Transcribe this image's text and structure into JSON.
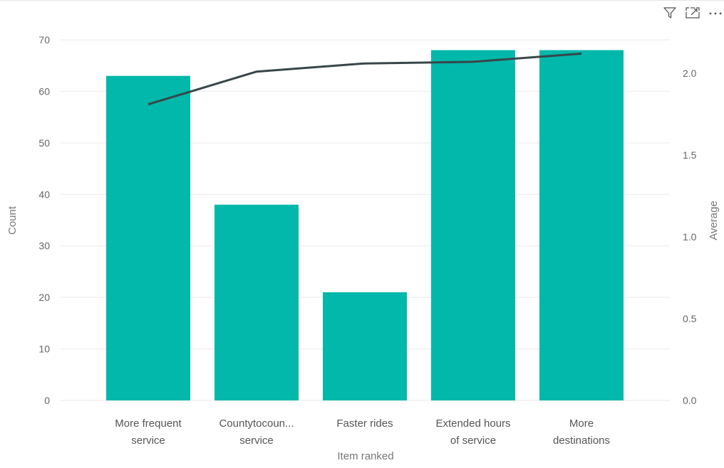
{
  "header": {
    "icons": [
      "filter-icon",
      "focus-mode-icon",
      "more-options-icon"
    ]
  },
  "chart_data": {
    "type": "bar",
    "categories": [
      [
        "More frequent",
        "service"
      ],
      [
        "Countytocoun...",
        "service"
      ],
      [
        "Faster rides"
      ],
      [
        "Extended hours",
        "of service"
      ],
      [
        "More",
        "destinations"
      ]
    ],
    "series": [
      {
        "values": [
          63,
          38,
          21,
          68,
          68
        ],
        "type": "bar",
        "axis": "left",
        "color": "#01b8aa"
      },
      {
        "values": [
          1.81,
          2.01,
          2.06,
          2.07,
          2.12
        ],
        "type": "line",
        "axis": "right",
        "color": "#374649"
      }
    ],
    "xlabel": "Item ranked",
    "ylabel": "Count",
    "y2label": "Average",
    "ylim": [
      0,
      70
    ],
    "y2lim": [
      0,
      2.1
    ],
    "yticks": [
      0,
      10,
      20,
      30,
      40,
      50,
      60,
      70
    ],
    "y2ticks": [
      "0.0",
      "0.5",
      "1.0",
      "1.5",
      "2.0"
    ],
    "grid": true,
    "legend": "none"
  }
}
